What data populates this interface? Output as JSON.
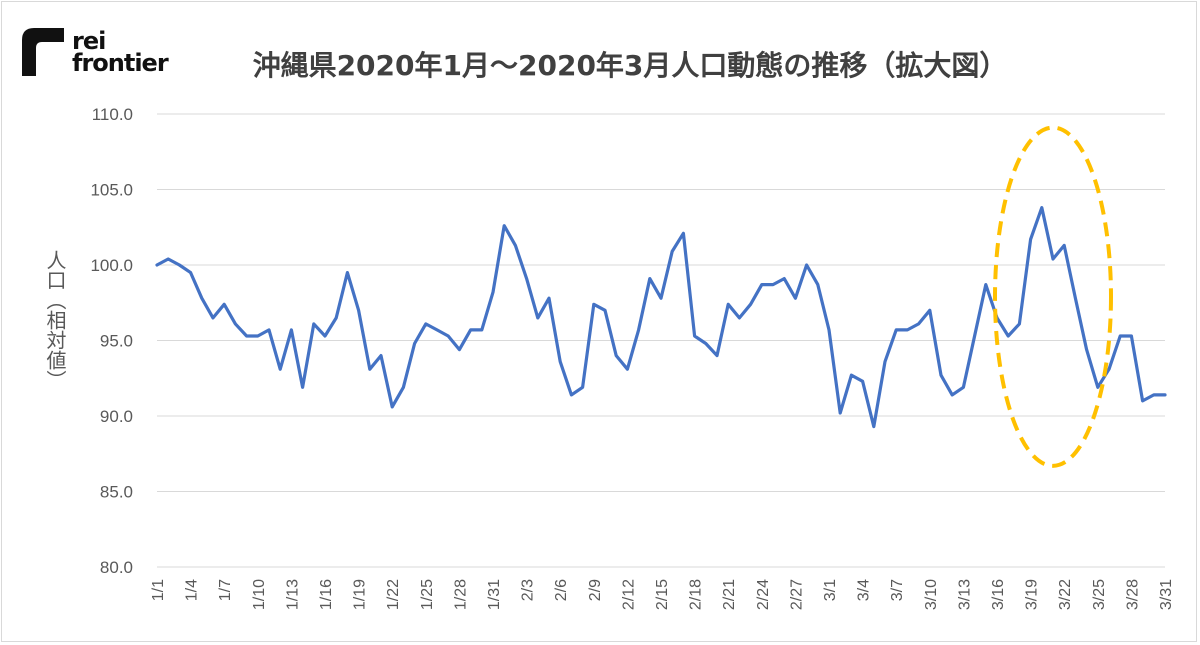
{
  "logo": {
    "line1": "rei",
    "line2": "frontier"
  },
  "chart_data": {
    "type": "line",
    "title": "沖縄県2020年1月～2020年3月人口動態の推移（拡大図）",
    "ylabel": "人口（相対値）",
    "xlabel": "",
    "ylim": [
      80,
      110
    ],
    "yticks": [
      "80.0",
      "85.0",
      "90.0",
      "95.0",
      "100.0",
      "105.0",
      "110.0"
    ],
    "grid": true,
    "x": [
      "1/1",
      "1/2",
      "1/3",
      "1/4",
      "1/5",
      "1/6",
      "1/7",
      "1/8",
      "1/9",
      "1/10",
      "1/11",
      "1/12",
      "1/13",
      "1/14",
      "1/15",
      "1/16",
      "1/17",
      "1/18",
      "1/19",
      "1/20",
      "1/21",
      "1/22",
      "1/23",
      "1/24",
      "1/25",
      "1/26",
      "1/27",
      "1/28",
      "1/29",
      "1/30",
      "1/31",
      "2/1",
      "2/2",
      "2/3",
      "2/4",
      "2/5",
      "2/6",
      "2/7",
      "2/8",
      "2/9",
      "2/10",
      "2/11",
      "2/12",
      "2/13",
      "2/14",
      "2/15",
      "2/16",
      "2/17",
      "2/18",
      "2/19",
      "2/20",
      "2/21",
      "2/22",
      "2/23",
      "2/24",
      "2/25",
      "2/26",
      "2/27",
      "2/28",
      "2/29",
      "3/1",
      "3/2",
      "3/3",
      "3/4",
      "3/5",
      "3/6",
      "3/7",
      "3/8",
      "3/9",
      "3/10",
      "3/11",
      "3/12",
      "3/13",
      "3/14",
      "3/15",
      "3/16",
      "3/17",
      "3/18",
      "3/19",
      "3/20",
      "3/21",
      "3/22",
      "3/23",
      "3/24",
      "3/25",
      "3/26",
      "3/27",
      "3/28",
      "3/29",
      "3/30",
      "3/31"
    ],
    "xtick_labels": [
      "1/1",
      "1/4",
      "1/7",
      "1/10",
      "1/13",
      "1/16",
      "1/19",
      "1/22",
      "1/25",
      "1/28",
      "1/31",
      "2/3",
      "2/6",
      "2/9",
      "2/12",
      "2/15",
      "2/18",
      "2/21",
      "2/24",
      "2/27",
      "3/1",
      "3/4",
      "3/7",
      "3/10",
      "3/13",
      "3/16",
      "3/19",
      "3/22",
      "3/25",
      "3/28",
      "3/31"
    ],
    "series": [
      {
        "values": [
          100.0,
          100.4,
          100.0,
          99.5,
          97.8,
          96.5,
          97.4,
          96.1,
          95.3,
          95.3,
          95.7,
          93.1,
          95.7,
          91.9,
          96.1,
          95.3,
          96.5,
          99.5,
          97.0,
          93.1,
          94.0,
          90.6,
          91.9,
          94.8,
          96.1,
          95.7,
          95.3,
          94.4,
          95.7,
          95.7,
          98.2,
          102.6,
          101.3,
          99.1,
          96.5,
          97.8,
          93.6,
          91.4,
          91.9,
          97.4,
          97.0,
          94.0,
          93.1,
          95.7,
          99.1,
          97.8,
          100.9,
          102.1,
          95.3,
          94.8,
          94.0,
          97.4,
          96.5,
          97.4,
          98.7,
          98.7,
          99.1,
          97.8,
          100.0,
          98.7,
          95.7,
          90.2,
          92.7,
          92.3,
          89.3,
          93.6,
          95.7,
          95.7,
          96.1,
          97.0,
          92.7,
          91.4,
          91.9,
          95.3,
          98.7,
          96.5,
          95.3,
          96.1,
          101.7,
          103.8,
          100.4,
          101.3,
          97.8,
          94.4,
          91.9,
          93.1,
          95.3,
          95.3,
          91.0,
          91.4,
          91.4
        ],
        "color": "#4472C4"
      }
    ],
    "annotations": [
      {
        "type": "dashed-ellipse",
        "color": "#FFC000",
        "x_center": "3/21",
        "y_range": [
          86.7,
          109.1
        ]
      }
    ]
  }
}
